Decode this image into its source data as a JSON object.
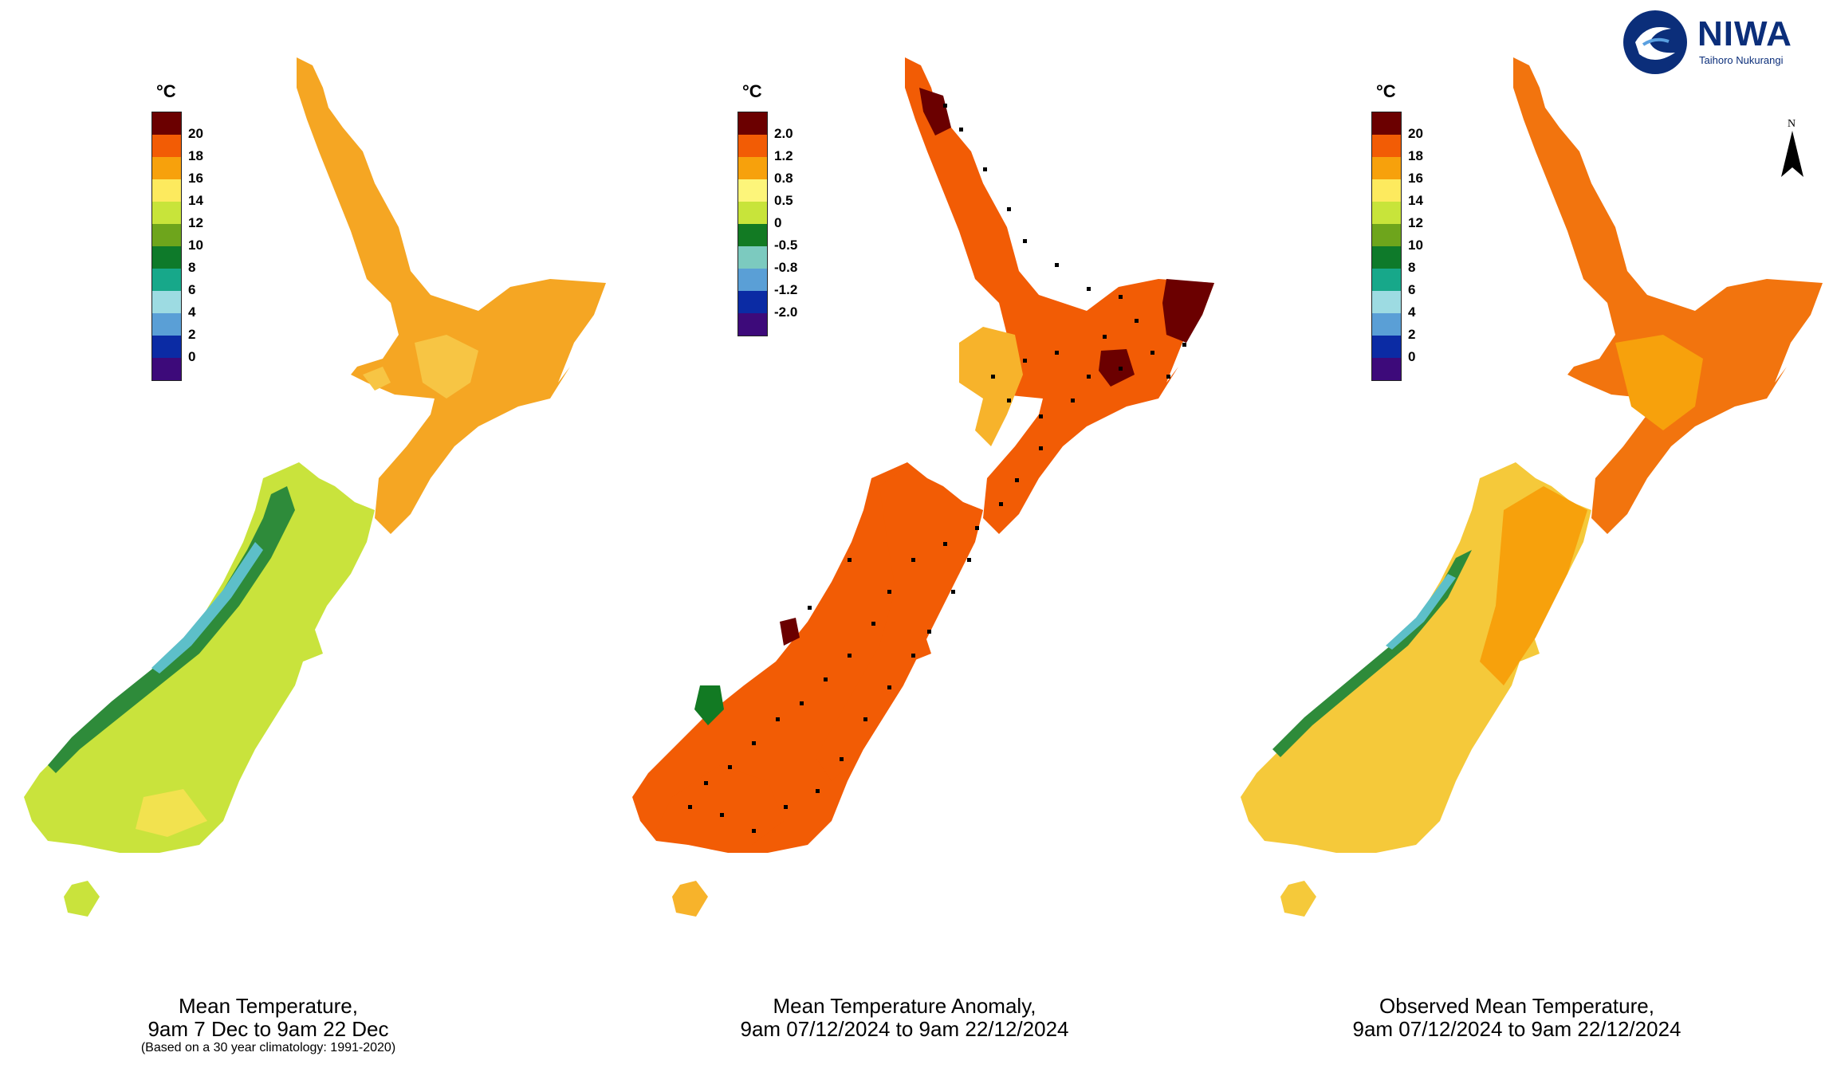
{
  "logo": {
    "name": "NIWA",
    "subtitle": "Taihoro Nukurangi"
  },
  "north_label": "N",
  "maps": [
    {
      "id": "climatology",
      "caption_line1": "Mean Temperature,",
      "caption_line2": "9am 7 Dec to 9am 22 Dec",
      "caption_note": "(Based on a 30 year climatology: 1991-2020)",
      "legend": {
        "unit": "°C",
        "colors": [
          "#6b0000",
          "#f25c05",
          "#f7a10c",
          "#fdea5e",
          "#c8e43a",
          "#6ea51c",
          "#0e7a2a",
          "#17a88a",
          "#9ddbe2",
          "#5a9fd6",
          "#0b2ba4",
          "#3d0a7a"
        ],
        "ticks": [
          "20",
          "18",
          "16",
          "14",
          "12",
          "10",
          "8",
          "6",
          "4",
          "2",
          "0"
        ]
      },
      "colors": {
        "north": "#f5a623",
        "north_alt": "#f7c544",
        "south": "#c9e33c",
        "south_alt": "#f2e24f",
        "alpine": "#2e8b3a",
        "peaks": "#5dbfc9"
      }
    },
    {
      "id": "anomaly",
      "caption_line1": "Mean Temperature Anomaly,",
      "caption_line2": "9am 07/12/2024 to 9am 22/12/2024",
      "caption_note": "",
      "legend": {
        "unit": "°C",
        "colors": [
          "#6b0000",
          "#f25c05",
          "#f7a10c",
          "#fdf57a",
          "#c8e43a",
          "#127a23",
          "#7ccabf",
          "#5a9fd6",
          "#0b2ba4",
          "#3d0a7a"
        ],
        "ticks": [
          "2.0",
          "1.2",
          "0.8",
          "0.5",
          "0",
          "-0.5",
          "-0.8",
          "-1.2",
          "-2.0"
        ]
      },
      "colors": {
        "north": "#f25c05",
        "north_alt": "#f7b32b",
        "south": "#f7b32b",
        "south_alt": "#f25c05",
        "alpine": "#6b0000",
        "peaks": "#127a23"
      }
    },
    {
      "id": "observed",
      "caption_line1": "Observed Mean Temperature,",
      "caption_line2": "9am 07/12/2024 to 9am 22/12/2024",
      "caption_note": "",
      "legend": {
        "unit": "°C",
        "colors": [
          "#6b0000",
          "#f25c05",
          "#f7a10c",
          "#fdea5e",
          "#c8e43a",
          "#6ea51c",
          "#0e7a2a",
          "#17a88a",
          "#9ddbe2",
          "#5a9fd6",
          "#0b2ba4",
          "#3d0a7a"
        ],
        "ticks": [
          "20",
          "18",
          "16",
          "14",
          "12",
          "10",
          "8",
          "6",
          "4",
          "2",
          "0"
        ]
      },
      "colors": {
        "north": "#f2740e",
        "north_alt": "#f7a10c",
        "south": "#f5c93a",
        "south_alt": "#f7a10c",
        "alpine": "#2e8b3a",
        "peaks": "#5dbfc9"
      }
    }
  ]
}
